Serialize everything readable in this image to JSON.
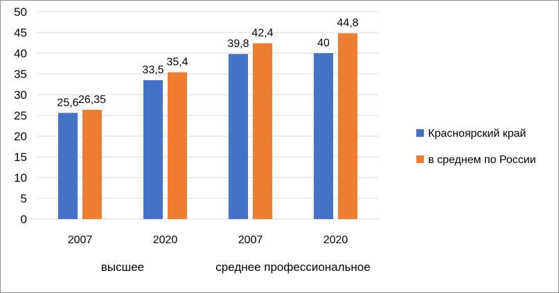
{
  "chart_data": {
    "type": "bar",
    "title": "",
    "xlabel": "",
    "ylabel": "",
    "ylim": [
      0,
      50
    ],
    "ytick_step": 5,
    "grid": true,
    "legend_position": "right",
    "categories": [
      "2007",
      "2020",
      "2007",
      "2020"
    ],
    "groups": [
      {
        "label": "высшее",
        "span": [
          0,
          1
        ]
      },
      {
        "label": "среднее профессиональное",
        "span": [
          2,
          3
        ]
      }
    ],
    "series": [
      {
        "name": "Красноярский край",
        "color": "#4472C4",
        "values": [
          25.6,
          33.5,
          39.8,
          40
        ],
        "labels": [
          "25,6",
          "33,5",
          "39,8",
          "40"
        ]
      },
      {
        "name": "в среднем по России",
        "color": "#ED7D31",
        "values": [
          26.35,
          35.4,
          42.4,
          44.8
        ],
        "labels": [
          "26,35",
          "35,4",
          "42,4",
          "44,8"
        ]
      }
    ]
  }
}
